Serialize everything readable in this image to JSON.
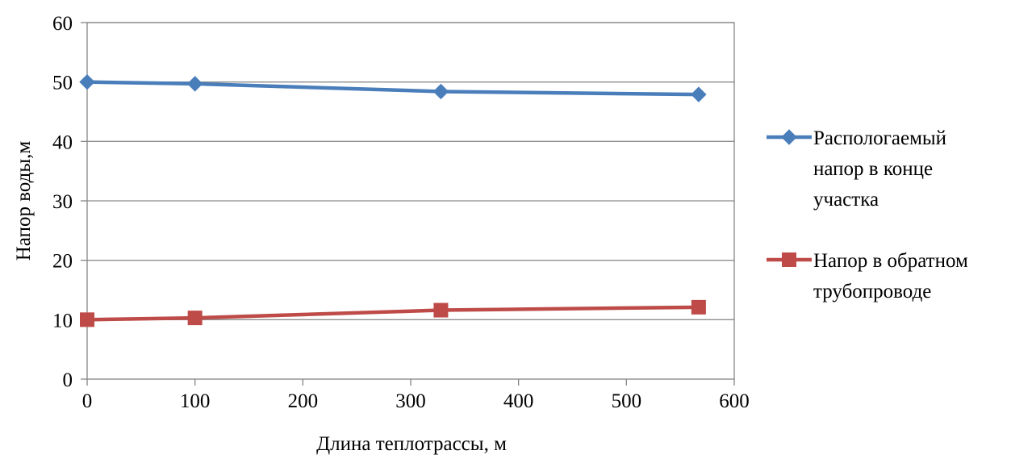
{
  "chart_data": {
    "type": "line",
    "title": "",
    "xlabel": "Длина теплотрассы, м",
    "ylabel": "Напор воды,м",
    "xlim": [
      0,
      600
    ],
    "ylim": [
      0,
      60
    ],
    "x_ticks": [
      "0",
      "100",
      "200",
      "300",
      "400",
      "500",
      "600"
    ],
    "y_ticks": [
      "0",
      "10",
      "20",
      "30",
      "40",
      "50",
      "60"
    ],
    "grid": "horizontal",
    "legend_position": "right",
    "series": [
      {
        "name": "Распологаемый напор в конце участка",
        "legend_lines": [
          "Распологаемый",
          "напор в конце",
          "участка"
        ],
        "color": "#4a7ebb",
        "marker": "diamond",
        "x": [
          0,
          100,
          328,
          567
        ],
        "y": [
          50.0,
          49.7,
          48.4,
          47.9
        ]
      },
      {
        "name": "Напор в обратном трубопроводе",
        "legend_lines": [
          "Напор в обратном",
          "трубопроводе"
        ],
        "color": "#be4b48",
        "marker": "square",
        "x": [
          0,
          100,
          328,
          567
        ],
        "y": [
          10.0,
          10.3,
          11.6,
          12.1
        ]
      }
    ]
  }
}
